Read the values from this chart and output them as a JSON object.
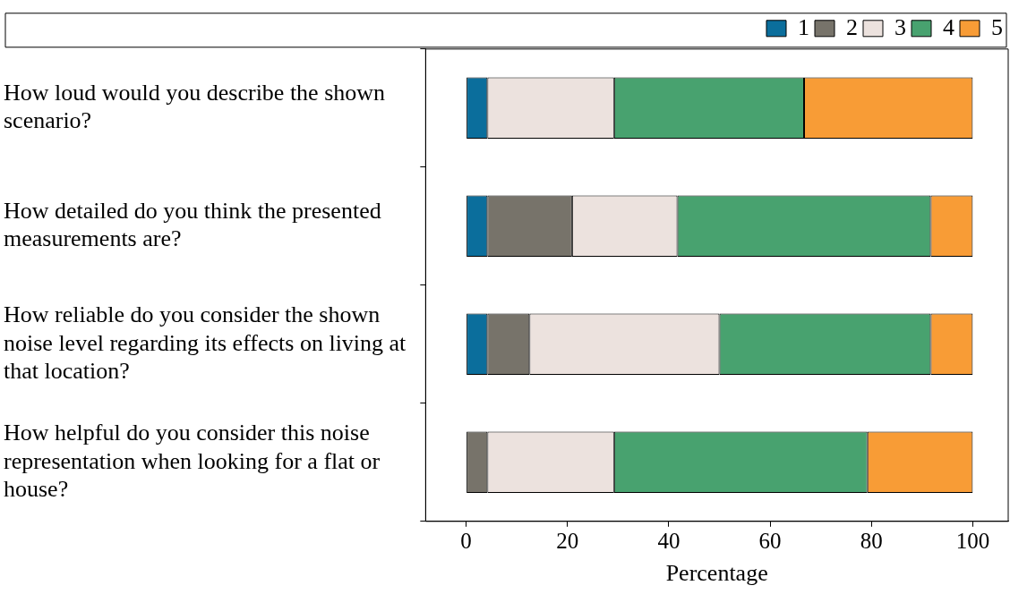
{
  "chart_data": {
    "type": "bar",
    "orientation": "horizontal",
    "stacked": true,
    "xlabel": "Percentage",
    "xlim": [
      -8,
      107
    ],
    "xticks": [
      0,
      20,
      40,
      60,
      80,
      100
    ],
    "grid": false,
    "legend": "top right",
    "categories": [
      "How loud would you describe the shown scenario?",
      "How detailed do you think the presented measurements are?",
      "How reliable do you consider the shown noise level regarding its effects on living at that location?",
      "How helpful do you consider this noise representation when looking for a flat or house?"
    ],
    "series": [
      {
        "name": "1",
        "color": "#0b6e9c",
        "values": [
          4.2,
          4.2,
          4.2,
          0
        ]
      },
      {
        "name": "2",
        "color": "#77736a",
        "values": [
          0,
          16.7,
          8.3,
          4.2
        ]
      },
      {
        "name": "3",
        "color": "#ece2de",
        "values": [
          25,
          20.8,
          37.5,
          25
        ]
      },
      {
        "name": "4",
        "color": "#48a26f",
        "values": [
          37.5,
          50,
          41.7,
          50
        ]
      },
      {
        "name": "5",
        "color": "#f89c36",
        "values": [
          33.3,
          8.3,
          8.3,
          20.8
        ]
      }
    ]
  }
}
